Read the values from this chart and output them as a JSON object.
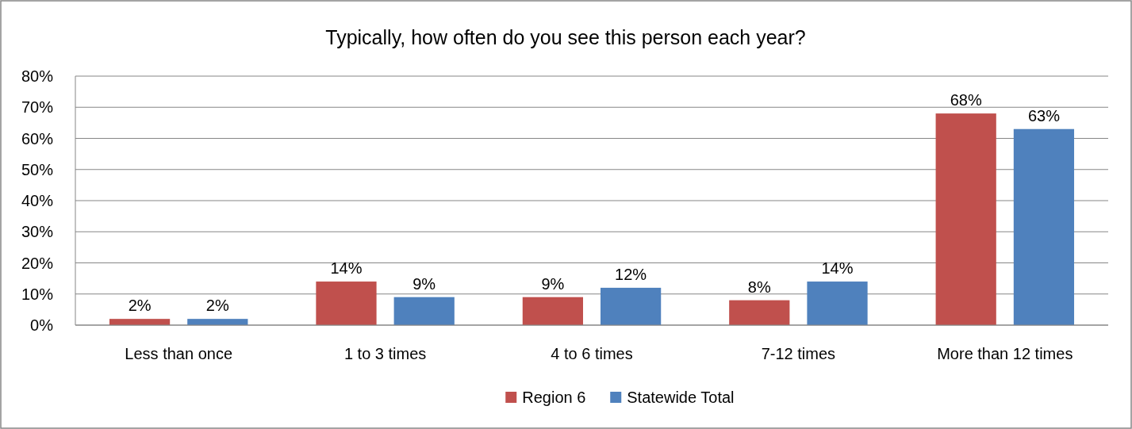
{
  "chart_data": {
    "type": "bar",
    "title": "Typically, how often do you see this person each year?",
    "categories": [
      "Less than once",
      "1 to 3 times",
      "4 to 6 times",
      "7-12 times",
      "More than 12 times"
    ],
    "series": [
      {
        "name": "Region 6",
        "color": "#c0504d",
        "values": [
          2,
          14,
          9,
          8,
          68
        ],
        "value_labels": [
          "2%",
          "14%",
          "9%",
          "8%",
          "68%"
        ]
      },
      {
        "name": "Statewide Total",
        "color": "#4f81bd",
        "values": [
          2,
          9,
          12,
          14,
          63
        ],
        "value_labels": [
          "2%",
          "9%",
          "12%",
          "14%",
          "63%"
        ]
      }
    ],
    "ylim": [
      0,
      80
    ],
    "yticks": [
      {
        "value": 0,
        "label": "0%"
      },
      {
        "value": 10,
        "label": "10%"
      },
      {
        "value": 20,
        "label": "20%"
      },
      {
        "value": 30,
        "label": "30%"
      },
      {
        "value": 40,
        "label": "40%"
      },
      {
        "value": 50,
        "label": "50%"
      },
      {
        "value": 60,
        "label": "60%"
      },
      {
        "value": 70,
        "label": "70%"
      },
      {
        "value": 80,
        "label": "80%"
      }
    ],
    "grid": "y",
    "legend": "bottom"
  }
}
